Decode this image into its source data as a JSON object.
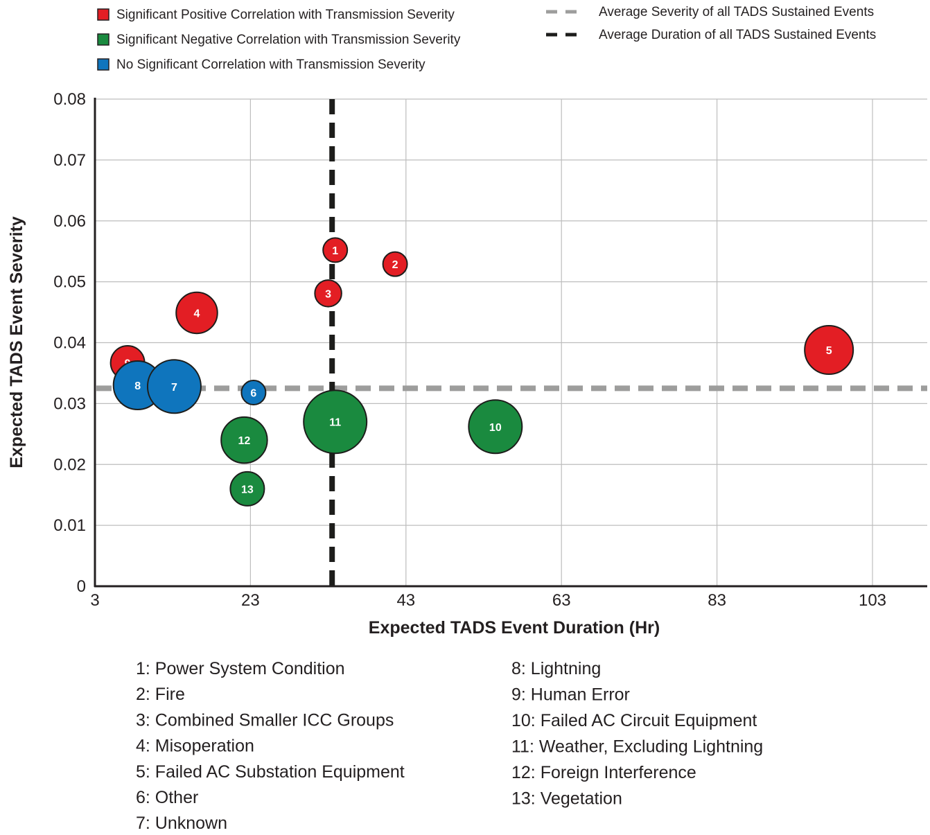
{
  "chart_data": {
    "type": "scatter",
    "subtype": "bubble",
    "xlabel": "Expected TADS Event Duration (Hr)",
    "ylabel": "Expected TADS Event Severity",
    "xlim": [
      3,
      110
    ],
    "ylim": [
      0,
      0.08
    ],
    "x_ticks": [
      3,
      23,
      43,
      63,
      83,
      103
    ],
    "x_tick_labels": [
      "3",
      "23",
      "43",
      "63",
      "83",
      "103"
    ],
    "y_ticks": [
      0,
      0.01,
      0.02,
      0.03,
      0.04,
      0.05,
      0.06,
      0.07,
      0.08
    ],
    "y_tick_labels": [
      "0",
      "0.01",
      "0.02",
      "0.03",
      "0.04",
      "0.05",
      "0.06",
      "0.07",
      "0.08"
    ],
    "grid": true,
    "legend_position": "top",
    "categories_legend": [
      {
        "key": "positive",
        "label": "Significant Positive Correlation with Transmission Severity",
        "color": "#e31e24"
      },
      {
        "key": "negative",
        "label": "Significant Negative Correlation with Transmission Severity",
        "color": "#1a8a3f"
      },
      {
        "key": "none",
        "label": "No Significant Correlation with Transmission Severity",
        "color": "#0f75bd"
      }
    ],
    "reference_lines": [
      {
        "label": "Average Severity of all TADS Sustained Events",
        "orientation": "horizontal",
        "value": 0.0325,
        "color": "#9d9d9c"
      },
      {
        "label": "Average Duration of all TADS Sustained Events",
        "orientation": "vertical",
        "value": 33.5,
        "color": "#1d1d1b"
      }
    ],
    "points": [
      {
        "id": "1",
        "x": 33.9,
        "y": 0.0552,
        "size": 1.0,
        "category": "positive"
      },
      {
        "id": "2",
        "x": 41.6,
        "y": 0.0529,
        "size": 1.0,
        "category": "positive"
      },
      {
        "id": "3",
        "x": 33.0,
        "y": 0.0481,
        "size": 1.1,
        "category": "positive"
      },
      {
        "id": "4",
        "x": 16.1,
        "y": 0.0449,
        "size": 1.7,
        "category": "positive"
      },
      {
        "id": "5",
        "x": 97.4,
        "y": 0.0388,
        "size": 2.0,
        "category": "positive"
      },
      {
        "id": "9",
        "x": 7.2,
        "y": 0.0367,
        "size": 1.4,
        "category": "positive"
      },
      {
        "id": "8",
        "x": 8.5,
        "y": 0.033,
        "size": 2.0,
        "category": "none"
      },
      {
        "id": "7",
        "x": 13.2,
        "y": 0.0328,
        "size": 2.2,
        "category": "none"
      },
      {
        "id": "6",
        "x": 23.4,
        "y": 0.0318,
        "size": 1.0,
        "category": "none"
      },
      {
        "id": "11",
        "x": 33.9,
        "y": 0.027,
        "size": 2.6,
        "category": "negative"
      },
      {
        "id": "10",
        "x": 54.5,
        "y": 0.0262,
        "size": 2.2,
        "category": "negative"
      },
      {
        "id": "12",
        "x": 22.2,
        "y": 0.024,
        "size": 1.9,
        "category": "negative"
      },
      {
        "id": "13",
        "x": 22.6,
        "y": 0.016,
        "size": 1.4,
        "category": "negative"
      }
    ]
  },
  "key": {
    "left": [
      "1: Power System Condition",
      "2: Fire",
      "3: Combined Smaller ICC Groups",
      "4: Misoperation",
      "5: Failed AC Substation Equipment",
      "6: Other",
      "7: Unknown"
    ],
    "right": [
      "8: Lightning",
      "9: Human Error",
      "10: Failed AC Circuit Equipment",
      "11: Weather, Excluding Lightning",
      "12: Foreign Interference",
      "13: Vegetation"
    ]
  }
}
